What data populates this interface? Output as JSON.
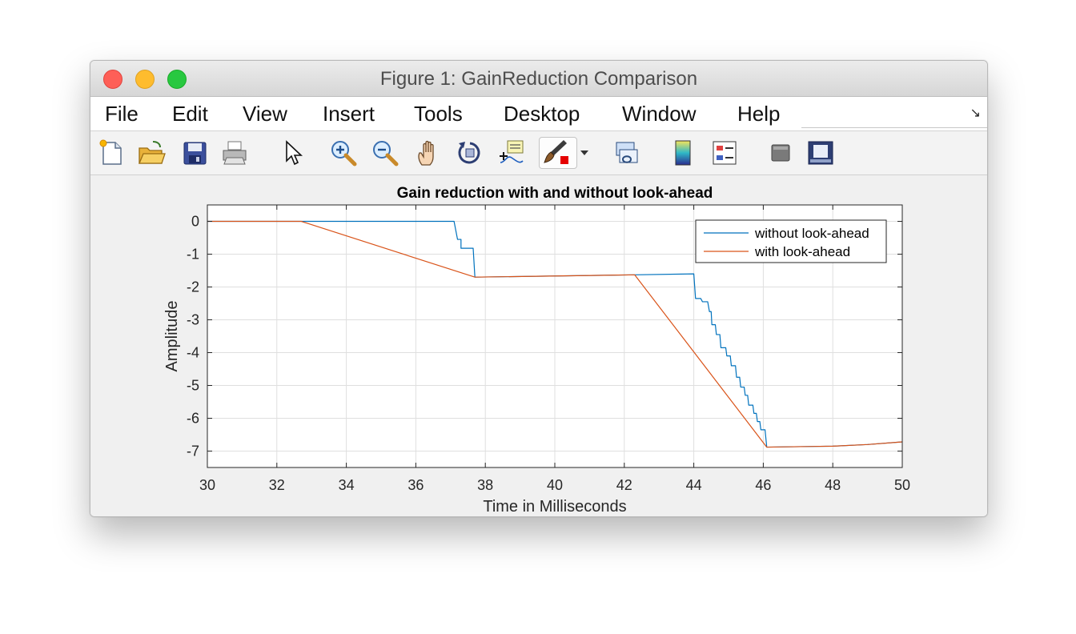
{
  "window": {
    "title": "Figure 1: GainReduction Comparison"
  },
  "menu": [
    "File",
    "Edit",
    "View",
    "Insert",
    "Tools",
    "Desktop",
    "Window",
    "Help"
  ],
  "toolbar": [
    {
      "name": "new-figure-icon",
      "label": "New Figure"
    },
    {
      "name": "open-file-icon",
      "label": "Open File"
    },
    {
      "name": "save-icon",
      "label": "Save Figure"
    },
    {
      "name": "print-icon",
      "label": "Print Figure"
    },
    {
      "name": "pointer-icon",
      "label": "Edit Plot"
    },
    {
      "name": "zoom-in-icon",
      "label": "Zoom In"
    },
    {
      "name": "zoom-out-icon",
      "label": "Zoom Out"
    },
    {
      "name": "pan-hand-icon",
      "label": "Pan"
    },
    {
      "name": "rotate-3d-icon",
      "label": "Rotate 3D"
    },
    {
      "name": "data-cursor-icon",
      "label": "Data Cursor"
    },
    {
      "name": "brush-icon",
      "label": "Brush/Select Data"
    },
    {
      "name": "link-plot-icon",
      "label": "Link Plot"
    },
    {
      "name": "colorbar-icon",
      "label": "Insert Colorbar"
    },
    {
      "name": "legend-icon",
      "label": "Insert Legend"
    },
    {
      "name": "hide-plot-tools-icon",
      "label": "Hide Plot Tools"
    },
    {
      "name": "show-plot-tools-icon",
      "label": "Show Plot Tools"
    }
  ],
  "colors": {
    "series1": "#0072bd",
    "series2": "#d95319"
  },
  "chart_data": {
    "type": "line",
    "title": "Gain reduction with and without look-ahead",
    "xlabel": "Time in Milliseconds",
    "ylabel": "Amplitude",
    "xlim": [
      30,
      50
    ],
    "ylim": [
      -7.5,
      0.5
    ],
    "xticks": [
      30,
      32,
      34,
      36,
      38,
      40,
      42,
      44,
      46,
      48,
      50
    ],
    "yticks": [
      0,
      -1,
      -2,
      -3,
      -4,
      -5,
      -6,
      -7
    ],
    "grid": true,
    "legend_position": "top-right",
    "series": [
      {
        "name": "without look-ahead",
        "color": "#0072bd",
        "points": [
          [
            30,
            0
          ],
          [
            37.1,
            0
          ],
          [
            37.2,
            -0.55
          ],
          [
            37.3,
            -0.55
          ],
          [
            37.3,
            -0.82
          ],
          [
            37.65,
            -0.82
          ],
          [
            37.7,
            -1.7
          ],
          [
            42.3,
            -1.63
          ],
          [
            44.0,
            -1.6
          ],
          [
            44.05,
            -2.35
          ],
          [
            44.2,
            -2.35
          ],
          [
            44.25,
            -2.45
          ],
          [
            44.4,
            -2.45
          ],
          [
            44.45,
            -2.75
          ],
          [
            44.5,
            -2.75
          ],
          [
            44.52,
            -3.15
          ],
          [
            44.62,
            -3.15
          ],
          [
            44.65,
            -3.45
          ],
          [
            44.75,
            -3.45
          ],
          [
            44.78,
            -3.85
          ],
          [
            44.92,
            -3.85
          ],
          [
            44.95,
            -4.1
          ],
          [
            45.05,
            -4.1
          ],
          [
            45.08,
            -4.4
          ],
          [
            45.2,
            -4.4
          ],
          [
            45.23,
            -4.75
          ],
          [
            45.32,
            -4.75
          ],
          [
            45.35,
            -5.05
          ],
          [
            45.45,
            -5.05
          ],
          [
            45.48,
            -5.3
          ],
          [
            45.55,
            -5.3
          ],
          [
            45.58,
            -5.6
          ],
          [
            45.7,
            -5.6
          ],
          [
            45.73,
            -5.85
          ],
          [
            45.8,
            -5.85
          ],
          [
            45.83,
            -6.1
          ],
          [
            45.9,
            -6.1
          ],
          [
            45.93,
            -6.35
          ],
          [
            46.05,
            -6.35
          ],
          [
            46.1,
            -6.88
          ],
          [
            48.0,
            -6.85
          ],
          [
            49.0,
            -6.8
          ],
          [
            50,
            -6.72
          ]
        ]
      },
      {
        "name": "with look-ahead",
        "color": "#d95319",
        "points": [
          [
            30,
            0
          ],
          [
            32.7,
            0
          ],
          [
            37.7,
            -1.7
          ],
          [
            42.3,
            -1.63
          ],
          [
            46.1,
            -6.88
          ],
          [
            48.0,
            -6.85
          ],
          [
            49.0,
            -6.8
          ],
          [
            50,
            -6.72
          ]
        ]
      }
    ]
  }
}
